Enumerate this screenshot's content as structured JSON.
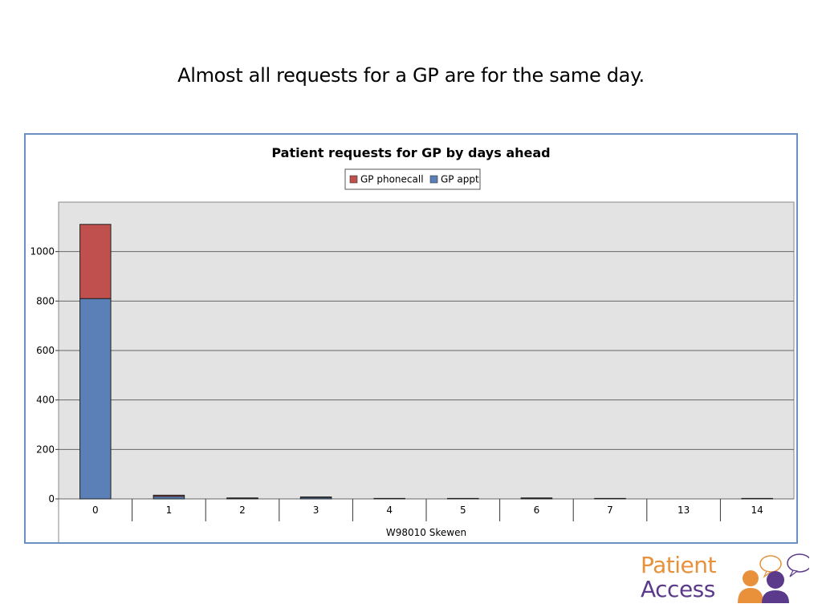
{
  "slide": {
    "title": "Almost all requests for a GP are for the same day."
  },
  "colors": {
    "gp_phonecall": "#c0504d",
    "gp_appt": "#5b80b8",
    "plot_background": "#e3e3e3",
    "frame_border": "#6b8fc2",
    "logo_orange": "#e8913a",
    "logo_purple": "#5b3a8c"
  },
  "chart_data": {
    "type": "bar",
    "stacked": true,
    "title": "Patient requests for GP by days ahead",
    "xlabel": "W98010 Skewen",
    "ylabel": "",
    "categories": [
      "0",
      "1",
      "2",
      "3",
      "4",
      "5",
      "6",
      "7",
      "13",
      "14"
    ],
    "series": [
      {
        "name": "GP appt",
        "values": [
          810,
          10,
          3,
          6,
          1,
          1,
          3,
          1,
          0,
          1
        ]
      },
      {
        "name": "GP phonecall",
        "values": [
          300,
          5,
          1,
          2,
          1,
          1,
          1,
          1,
          0,
          1
        ]
      }
    ],
    "ylim": [
      0,
      1200
    ],
    "yticks": [
      0,
      200,
      400,
      600,
      800,
      1000
    ],
    "grid": true,
    "legend": "top-center",
    "legend_order": [
      "GP phonecall",
      "GP appt"
    ]
  },
  "logo": {
    "line1": "Patient",
    "line2": "Access",
    "icon": "speech-bubble-people-icon"
  }
}
